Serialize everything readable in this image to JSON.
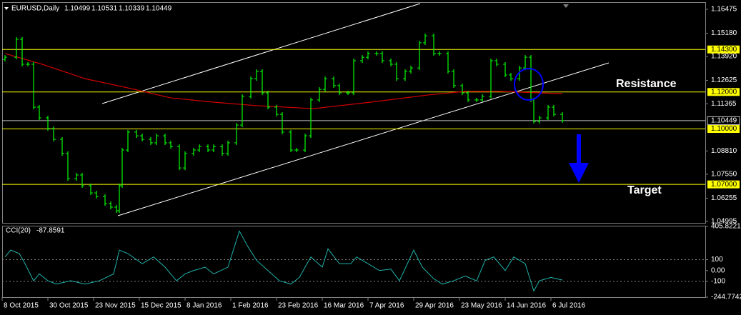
{
  "header": {
    "symbol": "EURUSD,Daily",
    "open": 1.10499,
    "high": 1.10531,
    "low": 1.10339,
    "close": 1.10449
  },
  "annotations": {
    "resistance": "Resistance",
    "target": "Target"
  },
  "chart_data": [
    {
      "type": "ohlc",
      "color": "#00ff00",
      "x": [
        1,
        5,
        7,
        9,
        11,
        13,
        16,
        18,
        21,
        23,
        26,
        28,
        31,
        33,
        36,
        38,
        40,
        41,
        42,
        44,
        47,
        49,
        52,
        54,
        57,
        59,
        62,
        64,
        67,
        69,
        72,
        74,
        77,
        79,
        82,
        84,
        87,
        89,
        91,
        93,
        96,
        98,
        101,
        103,
        106,
        108,
        111,
        113,
        116,
        118,
        121,
        123,
        126,
        128,
        131,
        133,
        136,
        138,
        141,
        143,
        146,
        148,
        151,
        153,
        156,
        158,
        161,
        163,
        166,
        168,
        171,
        173,
        176,
        178,
        181,
        183,
        185,
        186,
        188,
        191,
        193,
        196
      ],
      "values": [
        1.1388,
        1.1485,
        1.135,
        1.135,
        1.1118,
        1.106,
        1.1002,
        1.0944,
        1.0867,
        1.0731,
        1.0751,
        1.0693,
        1.0654,
        1.0635,
        1.0596,
        1.0577,
        1.0557,
        1.0693,
        1.0886,
        1.0983,
        1.0963,
        1.0944,
        1.0925,
        1.0963,
        1.0925,
        1.0905,
        1.0789,
        1.0867,
        1.0886,
        1.0905,
        1.0886,
        1.0905,
        1.0867,
        1.0925,
        1.1021,
        1.1176,
        1.1272,
        1.1311,
        1.1195,
        1.1118,
        1.1079,
        1.0983,
        1.0886,
        1.0886,
        1.0963,
        1.1157,
        1.1214,
        1.1272,
        1.1234,
        1.1195,
        1.1195,
        1.1369,
        1.1388,
        1.1408,
        1.1408,
        1.1369,
        1.135,
        1.1272,
        1.1311,
        1.133,
        1.1466,
        1.1504,
        1.1408,
        1.1408,
        1.1311,
        1.1234,
        1.1195,
        1.1157,
        1.1157,
        1.1176,
        1.1369,
        1.135,
        1.1292,
        1.1272,
        1.133,
        1.1388,
        1.1157,
        1.1041,
        1.106,
        1.1118,
        1.1079,
        1.10449
      ],
      "moving_average": {
        "color": "#d40000",
        "x": [
          1,
          14,
          29,
          44,
          59,
          74,
          89,
          109,
          129,
          149,
          162,
          174,
          196
        ],
        "values": [
          1.1408,
          1.135,
          1.1272,
          1.1222,
          1.1168,
          1.1145,
          1.1126,
          1.111,
          1.1145,
          1.1184,
          1.1203,
          1.1203,
          1.1191
        ]
      },
      "levels": [
        {
          "value": 1.143,
          "label": "1.14300"
        },
        {
          "value": 1.12,
          "label": "1.12000"
        },
        {
          "value": 1.1,
          "label": "1.10000"
        },
        {
          "value": 1.07,
          "label": "1.07000"
        }
      ],
      "level_color": "#ffff00",
      "xlim": [
        0,
        246
      ],
      "xticks": [
        {
          "value": 0,
          "label": "8 Oct 2015"
        },
        {
          "value": 16,
          "label": "30 Oct 2015"
        },
        {
          "value": 32,
          "label": "23 Nov 2015"
        },
        {
          "value": 48,
          "label": "15 Dec 2015"
        },
        {
          "value": 64,
          "label": "8 Jan 2016"
        },
        {
          "value": 80,
          "label": "1 Feb 2016"
        },
        {
          "value": 96,
          "label": "23 Feb 2016"
        },
        {
          "value": 112,
          "label": "16 Mar 2016"
        },
        {
          "value": 128,
          "label": "7 Apr 2016"
        },
        {
          "value": 144,
          "label": "29 Apr 2016"
        },
        {
          "value": 160,
          "label": "23 May 2016"
        },
        {
          "value": 176,
          "label": "14 Jun 2016"
        },
        {
          "value": 192,
          "label": "6 Jul 2016"
        }
      ],
      "ylim": [
        1.0492,
        1.1686
      ],
      "yticks": [
        1.16475,
        {
          "value": 1.1518,
          "label": "1.15180"
        },
        {
          "value": 1.1392,
          "label": "1.13920"
        },
        1.12625,
        1.11365,
        {
          "value": 1.0881,
          "label": "1.08810"
        },
        {
          "value": 1.0755,
          "label": "1.07550"
        },
        1.06255,
        1.04995
      ]
    },
    {
      "type": "line",
      "title": "CCI(20)",
      "color": "#20b2aa",
      "x": [
        1,
        3,
        6,
        8,
        11,
        13,
        16,
        19,
        24,
        29,
        34,
        39,
        41,
        44,
        49,
        53,
        57,
        61,
        64,
        67,
        71,
        74,
        79,
        83,
        86,
        89,
        93,
        97,
        101,
        104,
        108,
        112,
        114,
        118,
        122,
        124,
        128,
        132,
        136,
        139,
        144,
        147,
        151,
        154,
        158,
        162,
        166,
        169,
        172,
        176,
        179,
        183,
        186,
        188,
        192,
        196
      ],
      "values": [
        125,
        188,
        156,
        63,
        -94,
        -31,
        -94,
        -125,
        -94,
        -125,
        -94,
        -31,
        188,
        156,
        63,
        125,
        31,
        -94,
        -31,
        0,
        31,
        -31,
        31,
        363,
        219,
        94,
        0,
        -94,
        -125,
        -63,
        125,
        31,
        200,
        63,
        63,
        125,
        63,
        0,
        13,
        -94,
        188,
        31,
        -75,
        -125,
        -94,
        -50,
        -94,
        94,
        125,
        0,
        125,
        63,
        -188,
        -94,
        -63,
        -87.8591
      ],
      "levels": [
        100,
        -100
      ],
      "xlim": [
        0,
        246
      ],
      "ylim": [
        -244.7742,
        405.8221
      ],
      "yticks": [
        405.8221,
        100,
        {
          "value": 0,
          "label": "0.00"
        },
        -100,
        -244.7742
      ]
    }
  ]
}
